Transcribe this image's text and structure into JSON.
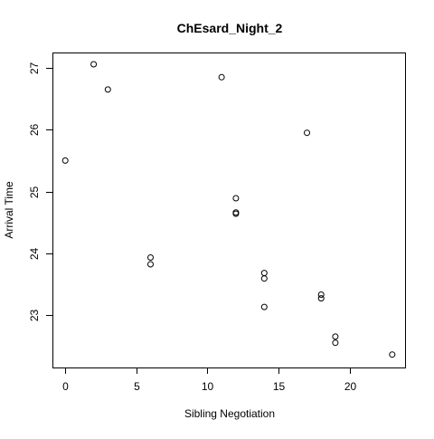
{
  "chart_data": {
    "type": "scatter",
    "title": "ChEsard_Night_2",
    "xlabel": "Sibling Negotiation",
    "ylabel": "Arrival Time",
    "xlim": [
      -0.9,
      23.9
    ],
    "ylim": [
      22.15,
      27.25
    ],
    "xticks": [
      0,
      5,
      10,
      15,
      20
    ],
    "yticks": [
      23,
      24,
      25,
      26,
      27
    ],
    "grid": false,
    "legend": "none",
    "marker": "open-circle",
    "points": [
      {
        "x": 0,
        "y": 25.5
      },
      {
        "x": 2,
        "y": 27.06
      },
      {
        "x": 3,
        "y": 26.65
      },
      {
        "x": 6,
        "y": 23.93
      },
      {
        "x": 6,
        "y": 23.82
      },
      {
        "x": 11,
        "y": 26.85
      },
      {
        "x": 12,
        "y": 24.89
      },
      {
        "x": 12,
        "y": 24.66
      },
      {
        "x": 12,
        "y": 24.64
      },
      {
        "x": 14,
        "y": 23.68
      },
      {
        "x": 14,
        "y": 23.59
      },
      {
        "x": 14,
        "y": 23.13
      },
      {
        "x": 17,
        "y": 25.95
      },
      {
        "x": 18,
        "y": 23.33
      },
      {
        "x": 18,
        "y": 23.27
      },
      {
        "x": 19,
        "y": 22.65
      },
      {
        "x": 19,
        "y": 22.55
      },
      {
        "x": 23,
        "y": 22.36
      }
    ]
  }
}
